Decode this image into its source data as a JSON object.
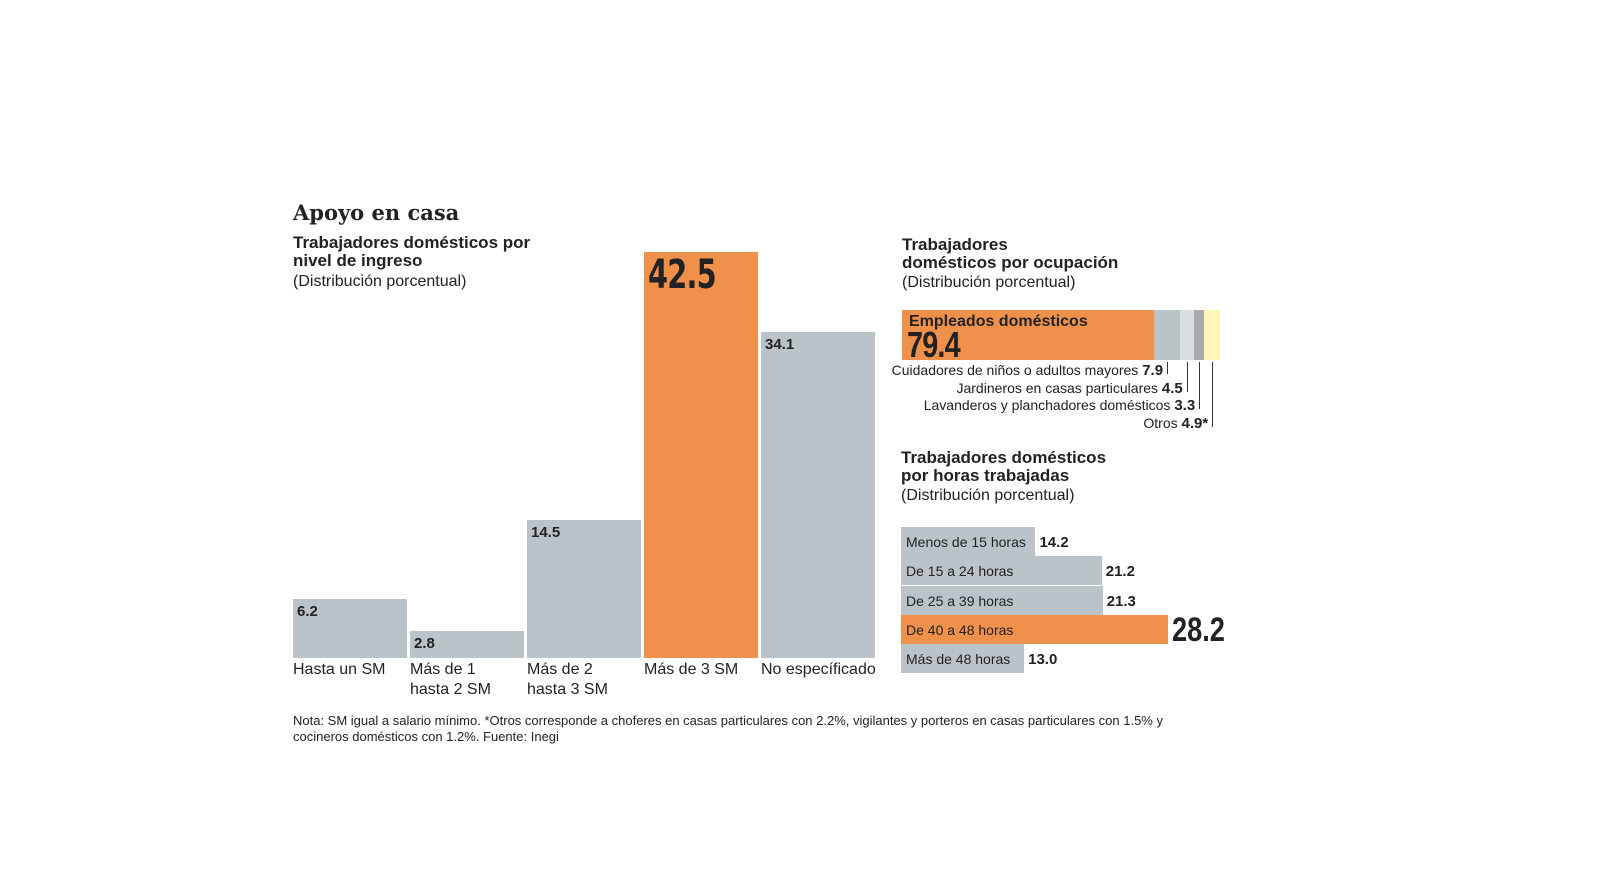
{
  "title": "Apoyo en casa",
  "chart_data": [
    {
      "type": "bar",
      "title": "Trabajadores domésticos por nivel de ingreso",
      "subtitle": "(Distribución porcentual)",
      "categories": [
        "Hasta un SM",
        "Más de 1 hasta 2 SM",
        "Más de 2 hasta 3 SM",
        "Más de 3 SM",
        "No específicado"
      ],
      "category_lines": [
        [
          "Hasta un SM"
        ],
        [
          "Más de 1",
          "hasta 2 SM"
        ],
        [
          "Más de 2",
          "hasta 3 SM"
        ],
        [
          "Más de 3 SM"
        ],
        [
          "No específicado"
        ]
      ],
      "values": [
        6.2,
        2.8,
        14.5,
        42.5,
        34.1
      ],
      "value_labels": [
        "6.2",
        "2.8",
        "14.5",
        "42.5",
        "34.1"
      ],
      "highlight_index": 3
    },
    {
      "type": "bar",
      "orientation": "stacked-horizontal",
      "title": "Trabajadores domésticos por ocupación",
      "title_lines": [
        "Trabajadores",
        "domésticos por ocupación"
      ],
      "subtitle": "(Distribución porcentual)",
      "categories": [
        "Empleados domésticos",
        "Cuidadores de niños o adultos mayores",
        "Jardineros en casas particulares",
        "Lavanderos y planchadores domésticos",
        "Otros"
      ],
      "values": [
        79.4,
        7.9,
        4.5,
        3.3,
        4.9
      ],
      "value_labels": [
        "79.4",
        "7.9",
        "4.5",
        "3.3",
        "4.9*"
      ],
      "colors": [
        "#f0914b",
        "#b9c3c8",
        "#d9dee1",
        "#a9abad",
        "#fdf6b8"
      ]
    },
    {
      "type": "bar",
      "orientation": "horizontal",
      "title": "Trabajadores domésticos por horas trabajadas",
      "title_lines": [
        "Trabajadores domésticos",
        "por horas trabajadas"
      ],
      "subtitle": "(Distribución porcentual)",
      "categories": [
        "Menos de 15 horas",
        "De 15 a 24 horas",
        "De 25 a 39 horas",
        "De 40 a 48 horas",
        "Más de 48 horas"
      ],
      "values": [
        14.2,
        21.2,
        21.3,
        28.2,
        13.0
      ],
      "value_labels": [
        "14.2",
        "21.2",
        "21.3",
        "28.2",
        "13.0"
      ],
      "highlight_index": 3
    }
  ],
  "colors": {
    "accent": "#f0914b",
    "gray": "#b9c3c8"
  },
  "note": "Nota: SM igual a salario mínimo. *Otros corresponde a choferes en casas particulares con 2.2%, vigilantes y porteros en casas particulares  con 1.5% y cocineros domésticos con 1.2%. Fuente: Inegi"
}
